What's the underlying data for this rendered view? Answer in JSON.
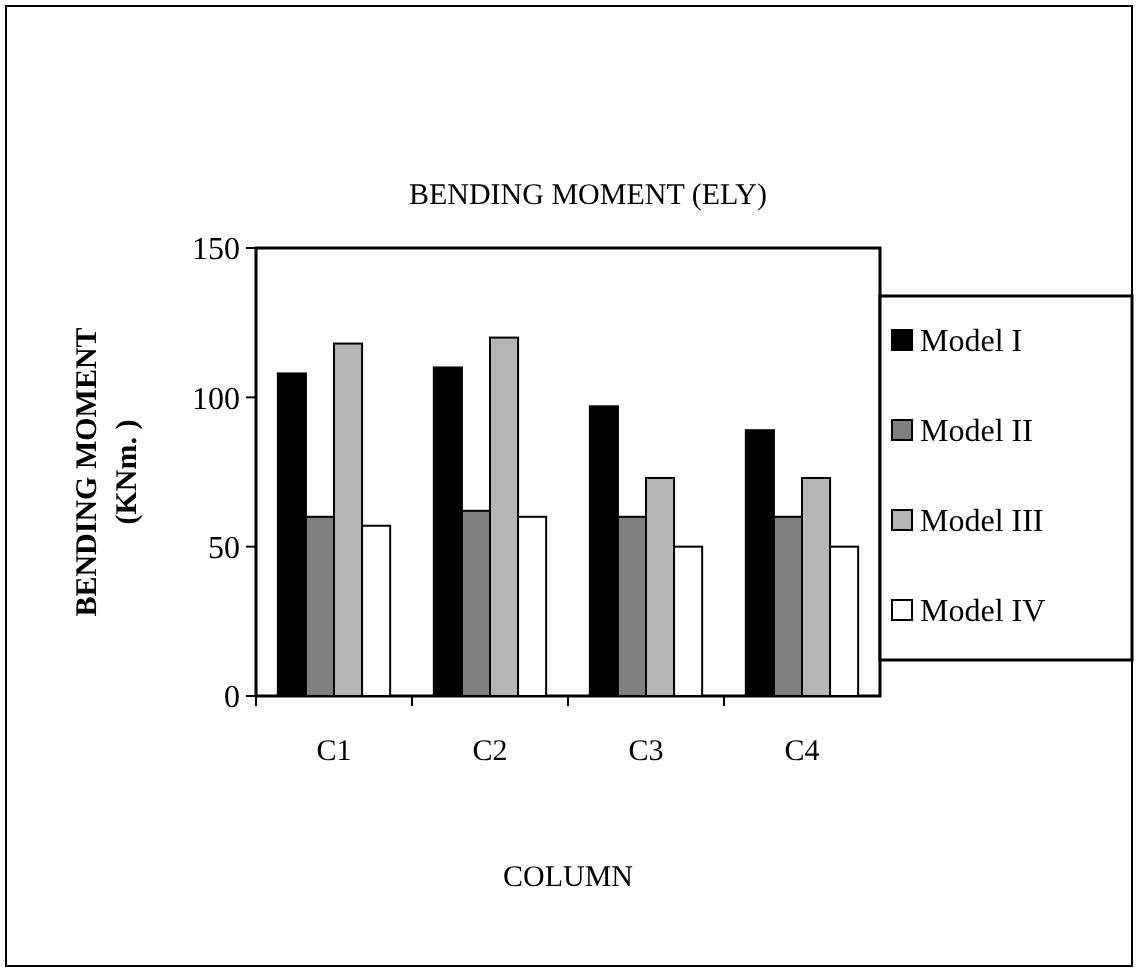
{
  "chart_data": {
    "type": "bar",
    "title": "BENDING MOMENT (ELY)",
    "xlabel": "COLUMN",
    "ylabel": "BENDING MOMENT\n(KNm. )",
    "categories": [
      "C1",
      "C2",
      "C3",
      "C4"
    ],
    "series": [
      {
        "name": "Model I",
        "color": "#000000",
        "values": [
          108,
          110,
          97,
          89
        ]
      },
      {
        "name": "Model II",
        "color": "#7f7f7f",
        "values": [
          60,
          62,
          60,
          60
        ]
      },
      {
        "name": "Model III",
        "color": "#b5b5b5",
        "values": [
          118,
          120,
          73,
          73
        ]
      },
      {
        "name": "Model IV",
        "color": "#ffffff",
        "values": [
          57,
          60,
          50,
          50
        ]
      }
    ],
    "ylim": [
      0,
      150
    ],
    "yticks": [
      0,
      50,
      100,
      150
    ],
    "grid": false,
    "legend": "right"
  }
}
